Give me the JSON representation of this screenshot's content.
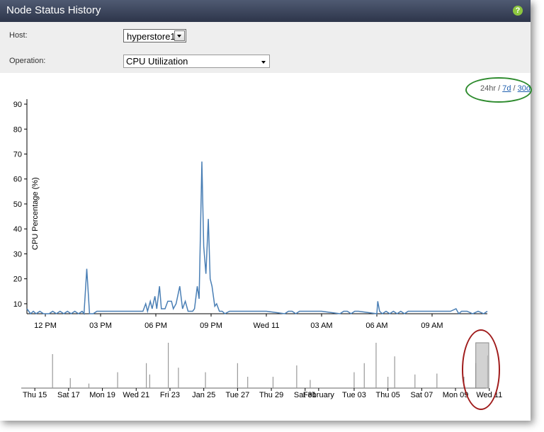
{
  "window": {
    "title": "Node Status History",
    "help_label": "?"
  },
  "form": {
    "host_label": "Host:",
    "host_value": "hyperstore1",
    "operation_label": "Operation:",
    "operation_value": "CPU Utilization"
  },
  "range": {
    "current": "24hr",
    "sep1": " / ",
    "link_7d": "7d",
    "sep2": " / ",
    "link_30d": "30d"
  },
  "colors": {
    "line": "#4a7fb5",
    "overview": "#999999",
    "brush": "#bfbfbf",
    "green_mark": "#2e8b2e",
    "red_mark": "#a01c1c"
  },
  "chart_data": [
    {
      "type": "line",
      "ylabel": "CPU Percentage (%)",
      "yticks": [
        10,
        20,
        30,
        40,
        50,
        60,
        70,
        80,
        90
      ],
      "ylim": [
        6,
        92
      ],
      "xlim": [
        0,
        25
      ],
      "xticks": [
        {
          "x": 1,
          "label": "12 PM"
        },
        {
          "x": 4,
          "label": "03 PM"
        },
        {
          "x": 7,
          "label": "06 PM"
        },
        {
          "x": 10,
          "label": "09 PM"
        },
        {
          "x": 13,
          "label": "Wed 11"
        },
        {
          "x": 16,
          "label": "03 AM"
        },
        {
          "x": 19,
          "label": "06 AM"
        },
        {
          "x": 22,
          "label": "09 AM"
        }
      ],
      "series": [
        {
          "points": [
            [
              0,
              8
            ],
            [
              0.2,
              6
            ],
            [
              0.35,
              7
            ],
            [
              0.5,
              6
            ],
            [
              0.7,
              7
            ],
            [
              0.9,
              6
            ],
            [
              1.2,
              6
            ],
            [
              1.4,
              7
            ],
            [
              1.6,
              6
            ],
            [
              1.8,
              7
            ],
            [
              2.0,
              6
            ],
            [
              2.2,
              7
            ],
            [
              2.4,
              6
            ],
            [
              2.6,
              7
            ],
            [
              2.8,
              6
            ],
            [
              3.0,
              7
            ],
            [
              3.1,
              6
            ],
            [
              3.25,
              24
            ],
            [
              3.4,
              6
            ],
            [
              3.6,
              6
            ],
            [
              3.8,
              7
            ],
            [
              4.0,
              7
            ],
            [
              5.0,
              7
            ],
            [
              6.0,
              7
            ],
            [
              6.3,
              7
            ],
            [
              6.45,
              10
            ],
            [
              6.55,
              7
            ],
            [
              6.7,
              11
            ],
            [
              6.8,
              8
            ],
            [
              6.95,
              13
            ],
            [
              7.05,
              8
            ],
            [
              7.2,
              17
            ],
            [
              7.3,
              8
            ],
            [
              7.5,
              8
            ],
            [
              7.65,
              11
            ],
            [
              7.85,
              11
            ],
            [
              7.95,
              8
            ],
            [
              8.1,
              10
            ],
            [
              8.3,
              17
            ],
            [
              8.45,
              8
            ],
            [
              8.6,
              11
            ],
            [
              8.75,
              7
            ],
            [
              9.0,
              7
            ],
            [
              9.1,
              8
            ],
            [
              9.25,
              17
            ],
            [
              9.35,
              12
            ],
            [
              9.5,
              67
            ],
            [
              9.6,
              33
            ],
            [
              9.72,
              22
            ],
            [
              9.85,
              44
            ],
            [
              9.95,
              20
            ],
            [
              10.05,
              17
            ],
            [
              10.2,
              9
            ],
            [
              10.3,
              10
            ],
            [
              10.45,
              7
            ],
            [
              10.6,
              7
            ],
            [
              10.75,
              6
            ],
            [
              11,
              7
            ],
            [
              12,
              7
            ],
            [
              13,
              7
            ],
            [
              14,
              6
            ],
            [
              14.2,
              7
            ],
            [
              14.4,
              7
            ],
            [
              14.6,
              6
            ],
            [
              14.8,
              7
            ],
            [
              15,
              7
            ],
            [
              16,
              7
            ],
            [
              17,
              6
            ],
            [
              17.2,
              7
            ],
            [
              17.4,
              7
            ],
            [
              17.6,
              6
            ],
            [
              17.8,
              7
            ],
            [
              18,
              7
            ],
            [
              19,
              6
            ],
            [
              19.05,
              11
            ],
            [
              19.15,
              7
            ],
            [
              19.3,
              6
            ],
            [
              19.5,
              7
            ],
            [
              19.7,
              6
            ],
            [
              19.9,
              7
            ],
            [
              20.1,
              6
            ],
            [
              20.3,
              7
            ],
            [
              20.5,
              6
            ],
            [
              20.7,
              7
            ],
            [
              21,
              7
            ],
            [
              22,
              7
            ],
            [
              23,
              7
            ],
            [
              23.3,
              8
            ],
            [
              23.45,
              6
            ],
            [
              23.6,
              7
            ],
            [
              23.9,
              7
            ],
            [
              24.2,
              6
            ],
            [
              24.5,
              7
            ],
            [
              24.8,
              6
            ],
            [
              25,
              7
            ]
          ]
        }
      ]
    },
    {
      "type": "area",
      "xlim": [
        0,
        27
      ],
      "xticks": [
        {
          "x": 0.3,
          "label": "Thu 15"
        },
        {
          "x": 2.3,
          "label": "Sat 17"
        },
        {
          "x": 4.3,
          "label": "Mon 19"
        },
        {
          "x": 6.3,
          "label": "Wed 21"
        },
        {
          "x": 8.3,
          "label": "Fri 23"
        },
        {
          "x": 10.3,
          "label": "Jan 25"
        },
        {
          "x": 12.3,
          "label": "Tue 27"
        },
        {
          "x": 14.3,
          "label": "Thu 29"
        },
        {
          "x": 16.3,
          "label": "Sat 31"
        },
        {
          "x": 17.1,
          "label": "February"
        },
        {
          "x": 19.2,
          "label": "Tue 03"
        },
        {
          "x": 21.2,
          "label": "Thu 05"
        },
        {
          "x": 23.2,
          "label": "Sat 07"
        },
        {
          "x": 25.2,
          "label": "Mon 09"
        },
        {
          "x": 27.2,
          "label": "Wed 11"
        }
      ],
      "spikes": [
        [
          1.35,
          0.75
        ],
        [
          2.4,
          0.22
        ],
        [
          3.5,
          0.1
        ],
        [
          5.2,
          0.35
        ],
        [
          6.9,
          0.55
        ],
        [
          7.1,
          0.3
        ],
        [
          8.2,
          1.0
        ],
        [
          8.8,
          0.45
        ],
        [
          10.4,
          0.35
        ],
        [
          12.3,
          0.55
        ],
        [
          12.9,
          0.25
        ],
        [
          14.4,
          0.25
        ],
        [
          15.8,
          0.5
        ],
        [
          16.6,
          0.18
        ],
        [
          19.2,
          0.35
        ],
        [
          19.8,
          0.55
        ],
        [
          20.5,
          1.0
        ],
        [
          21.2,
          0.25
        ],
        [
          21.6,
          0.7
        ],
        [
          22.8,
          0.3
        ],
        [
          24.1,
          0.32
        ],
        [
          25.7,
          0.25
        ],
        [
          26.4,
          0.55
        ],
        [
          27.1,
          0.72
        ]
      ],
      "brush": [
        26.4,
        27.4
      ]
    }
  ]
}
